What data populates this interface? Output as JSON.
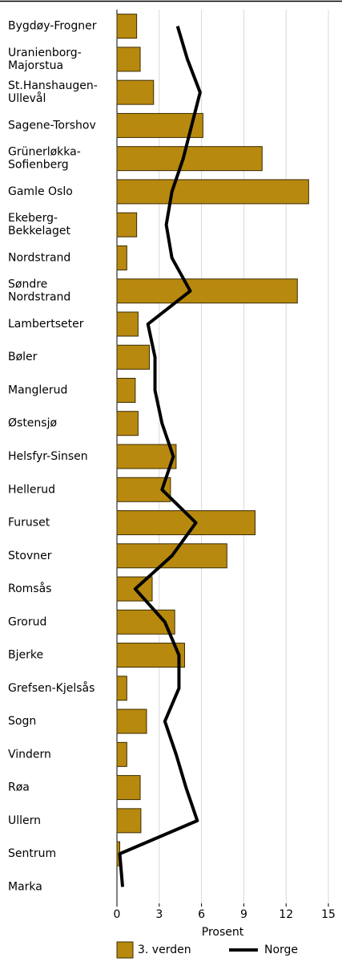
{
  "chart_data": {
    "type": "bar",
    "x_label": "Prosent",
    "categories": [
      "Bygdøy-Frogner",
      "Uranienborg-\nMajorstua",
      "St.Hanshaugen-\nUllevål",
      "Sagene-Torshov",
      "Grünerløkka-\nSofienberg",
      "Gamle Oslo",
      "Ekeberg-\nBekkelaget",
      "Nordstrand",
      "Søndre\nNordstrand",
      "Lambertseter",
      "Bøler",
      "Manglerud",
      "Østensjø",
      "Helsfyr-Sinsen",
      "Hellerud",
      "Furuset",
      "Stovner",
      "Romsås",
      "Grorud",
      "Bjerke",
      "Grefsen-Kjelsås",
      "Sogn",
      "Vindern",
      "Røa",
      "Ullern",
      "Sentrum",
      "Marka"
    ],
    "series": [
      {
        "name": "3. verden",
        "type": "bar",
        "color": "#b8890f",
        "values": [
          1.4,
          1.65,
          2.6,
          6.1,
          10.3,
          13.6,
          1.4,
          0.7,
          12.8,
          1.5,
          2.3,
          1.3,
          1.5,
          4.2,
          3.8,
          9.8,
          7.8,
          2.5,
          4.1,
          4.8,
          0.7,
          2.1,
          0.7,
          1.65,
          1.7,
          0.2,
          0
        ]
      },
      {
        "name": "Norge",
        "type": "line",
        "color": "#000000",
        "values": [
          4.3,
          5.0,
          5.9,
          5.3,
          4.7,
          3.9,
          3.5,
          3.9,
          5.2,
          2.2,
          2.7,
          2.7,
          3.2,
          4.0,
          3.2,
          5.6,
          3.9,
          1.3,
          3.4,
          4.4,
          4.4,
          3.4,
          4.2,
          4.9,
          5.7,
          0.2,
          0.4
        ]
      }
    ],
    "xlim": [
      0,
      15
    ],
    "xticks": [
      0,
      3,
      6,
      9,
      12,
      15
    ],
    "grid": true
  }
}
